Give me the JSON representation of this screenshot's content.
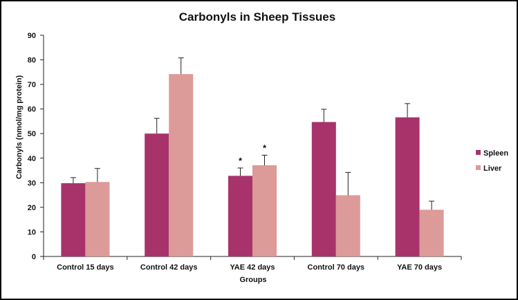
{
  "chart_data": {
    "type": "bar",
    "title": "Carbonyls in Sheep Tissues",
    "xlabel": "Groups",
    "ylabel": "Carbonyls  (nmol/mg protein)",
    "ylim": [
      0,
      90
    ],
    "yticks": [
      0,
      10,
      20,
      30,
      40,
      50,
      60,
      70,
      80,
      90
    ],
    "categories": [
      "Control 15 days",
      "Control 42 days",
      "YAE 42 days",
      "Control 70 days",
      "YAE 70 days"
    ],
    "series": [
      {
        "name": "Spleen",
        "color": "#a8336b",
        "values": [
          29.8,
          50.0,
          32.8,
          54.7,
          56.6
        ],
        "errors": [
          2.3,
          6.2,
          3.2,
          5.2,
          5.6
        ]
      },
      {
        "name": "Liver",
        "color": "#dc9a98",
        "values": [
          30.3,
          74.2,
          37.1,
          24.9,
          19.0
        ],
        "errors": [
          5.5,
          6.6,
          4.1,
          9.3,
          3.5
        ]
      }
    ],
    "annotations": [
      {
        "category": "YAE 42 days",
        "series": "Spleen",
        "text": "*"
      },
      {
        "category": "YAE 42 days",
        "series": "Liver",
        "text": "*"
      }
    ],
    "grid": false,
    "legend": "right"
  }
}
